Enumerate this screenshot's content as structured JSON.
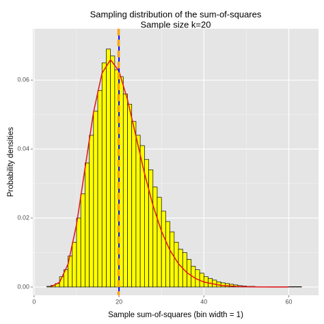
{
  "chart_data": {
    "type": "histogram",
    "title": "Sampling distribution of the sum-of-squares",
    "subtitle": "Sample size k=20",
    "x_label": "Sample sum-of-squares (bin width = 1)",
    "y_label": "Probability densities",
    "bins": [
      3,
      4,
      5,
      6,
      7,
      8,
      9,
      10,
      11,
      12,
      13,
      14,
      15,
      16,
      17,
      18,
      19,
      20,
      21,
      22,
      23,
      24,
      25,
      26,
      27,
      28,
      29,
      30,
      31,
      32,
      33,
      34,
      35,
      36,
      37,
      38,
      39,
      40,
      41,
      42,
      43,
      44,
      45,
      46,
      47,
      48,
      49,
      50,
      51,
      52,
      53,
      54,
      55,
      56,
      57,
      58,
      59,
      60,
      61,
      62,
      63
    ],
    "values": [
      0.0002,
      0.0005,
      0.001,
      0.003,
      0.005,
      0.009,
      0.013,
      0.02,
      0.027,
      0.036,
      0.044,
      0.051,
      0.057,
      0.065,
      0.069,
      0.067,
      0.063,
      0.061,
      0.056,
      0.053,
      0.048,
      0.044,
      0.041,
      0.037,
      0.034,
      0.029,
      0.026,
      0.022,
      0.019,
      0.016,
      0.013,
      0.011,
      0.01,
      0.008,
      0.006,
      0.005,
      0.004,
      0.003,
      0.0025,
      0.002,
      0.0015,
      0.0012,
      0.001,
      0.0008,
      0.0006,
      0.0004,
      0.0003,
      0.0002,
      0.0002,
      0.0001,
      0.0001,
      0.0001,
      0.0001,
      0.0001,
      0.0001,
      0.0001,
      0.0001,
      0.0001,
      0.0001,
      0.0001
    ],
    "color": "#ffff00",
    "edge_color": "#000000",
    "density": {
      "color": "#e41a1c",
      "x": [
        4,
        6,
        8,
        10,
        12,
        14,
        16,
        18,
        20,
        22,
        24,
        26,
        28,
        30,
        32,
        34,
        36,
        38,
        40,
        44,
        48,
        52,
        56,
        60
      ],
      "values": [
        0.0001,
        0.00135,
        0.00662,
        0.01813,
        0.0344,
        0.0507,
        0.062,
        0.0659,
        0.0626,
        0.0543,
        0.0437,
        0.033,
        0.0237,
        0.0162,
        0.01066,
        0.00676,
        0.00416,
        0.00249,
        0.00145,
        0.000464,
        0.000137,
        3.82e-05,
        1.01e-05,
        2.5e-06
      ]
    },
    "vlines": [
      {
        "x": 20,
        "color": "#0000ff",
        "dashed": false
      },
      {
        "x": 19.9,
        "color": "#ffa500",
        "dashed": true
      }
    ],
    "xlim": [
      -0.3,
      67
    ],
    "ylim": [
      -0.0024,
      0.0749
    ],
    "xticks": [
      0,
      20,
      40,
      60
    ],
    "yticks": [
      {
        "value": 0,
        "label": "0.00"
      },
      {
        "value": 0.02,
        "label": "0.02"
      },
      {
        "value": 0.04,
        "label": "0.04"
      },
      {
        "value": 0.06,
        "label": "0.06"
      }
    ],
    "grid": true
  }
}
